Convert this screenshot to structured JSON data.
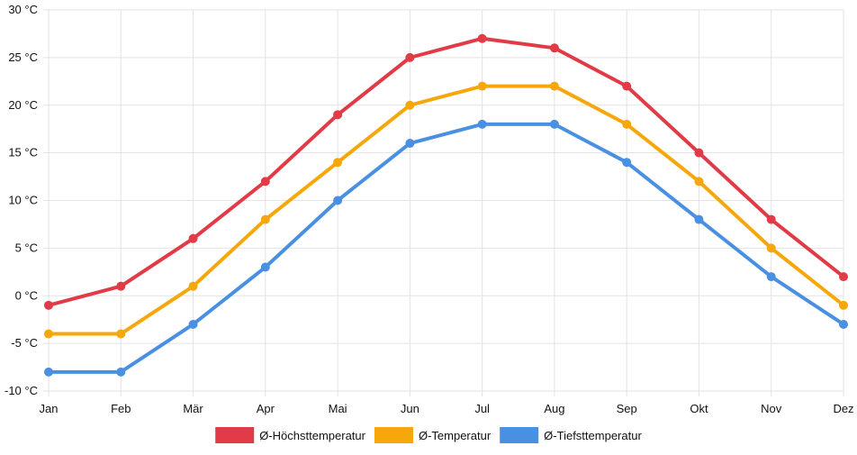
{
  "chart_data": {
    "type": "line",
    "categories": [
      "Jan",
      "Feb",
      "Mär",
      "Apr",
      "Mai",
      "Jun",
      "Jul",
      "Aug",
      "Sep",
      "Okt",
      "Nov",
      "Dez"
    ],
    "y_ticks": [
      {
        "value": 30,
        "label": "30 °C"
      },
      {
        "value": 25,
        "label": "25 °C"
      },
      {
        "value": 20,
        "label": "20 °C"
      },
      {
        "value": 15,
        "label": "15 °C"
      },
      {
        "value": 10,
        "label": "10 °C"
      },
      {
        "value": 5,
        "label": "5 °C"
      },
      {
        "value": 0,
        "label": "0 °C"
      },
      {
        "value": -5,
        "label": "-5 °C"
      },
      {
        "value": -10,
        "label": "-10 °C"
      }
    ],
    "ylim": [
      -10,
      30
    ],
    "grid": true,
    "legend_position": "bottom",
    "series": [
      {
        "name": "Ø-Höchsttemperatur",
        "color": "#e03b46",
        "values": [
          -1,
          1,
          6,
          12,
          19,
          25,
          27,
          26,
          22,
          15,
          8,
          2
        ]
      },
      {
        "name": "Ø-Temperatur",
        "color": "#f6a70b",
        "values": [
          -4,
          -4,
          1,
          8,
          14,
          20,
          22,
          22,
          18,
          12,
          5,
          -1
        ]
      },
      {
        "name": "Ø-Tiefsttemperatur",
        "color": "#4a90e2",
        "values": [
          -8,
          -8,
          -3,
          3,
          10,
          16,
          18,
          18,
          14,
          8,
          2,
          -3
        ]
      }
    ]
  }
}
